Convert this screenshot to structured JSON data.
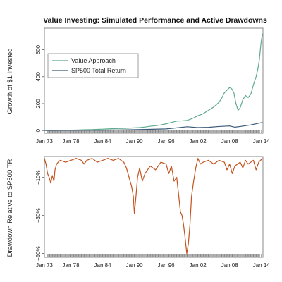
{
  "colors": {
    "value_approach": "#5dab8c",
    "sp500": "#3a5a78",
    "drawdown": "#c4521e",
    "frame": "#888888",
    "tick_band": "#999999"
  },
  "chart_data": [
    {
      "type": "line",
      "title": "Value Investing: Simulated Performance and Active Drawdowns",
      "ylabel": "Growth of $1 Invested",
      "xlabel": "",
      "xlim": [
        1973.0,
        2014.3
      ],
      "ylim": [
        -20,
        760
      ],
      "yticks": [
        0,
        200,
        400,
        600
      ],
      "x_ticks": [
        {
          "label": "Jan 73",
          "x": 1973
        },
        {
          "label": "Jan 78",
          "x": 1978
        },
        {
          "label": "Jan 84",
          "x": 1984
        },
        {
          "label": "Jan 90",
          "x": 1990
        },
        {
          "label": "Jan 96",
          "x": 1996
        },
        {
          "label": "Jan 02",
          "x": 2002
        },
        {
          "label": "Jan 08",
          "x": 2008
        },
        {
          "label": "Jan 14",
          "x": 2014
        }
      ],
      "grid": false,
      "legend_position": "top-left",
      "series": [
        {
          "name": "Value Approach",
          "color_key": "value_approach",
          "x": [
            1973,
            1974,
            1975,
            1976,
            1977,
            1978,
            1979,
            1980,
            1981,
            1982,
            1983,
            1984,
            1985,
            1986,
            1987,
            1988,
            1989,
            1990,
            1991,
            1992,
            1993,
            1994,
            1995,
            1996,
            1997,
            1998,
            1999,
            2000,
            2001,
            2002,
            2003,
            2004,
            2005,
            2006,
            2006.5,
            2007,
            2007.5,
            2008,
            2008.4,
            2008.8,
            2009.2,
            2009.6,
            2010,
            2010.5,
            2011,
            2011.5,
            2012,
            2012.5,
            2013,
            2013.3,
            2013.6,
            2013.9,
            2014.2
          ],
          "values": [
            1,
            1,
            1.5,
            2,
            2.5,
            3,
            4,
            5,
            6,
            7,
            9,
            10,
            12,
            14,
            15,
            16,
            18,
            20,
            22,
            26,
            32,
            36,
            42,
            50,
            60,
            70,
            72,
            75,
            90,
            110,
            125,
            150,
            175,
            210,
            240,
            280,
            300,
            320,
            310,
            280,
            200,
            150,
            170,
            230,
            260,
            245,
            270,
            340,
            400,
            450,
            520,
            640,
            720
          ]
        },
        {
          "name": "SP500 Total Return",
          "color_key": "sp500",
          "x": [
            1973,
            1976,
            1980,
            1984,
            1988,
            1992,
            1996,
            1998,
            2000,
            2002,
            2004,
            2006,
            2008,
            2009,
            2010,
            2012,
            2014.2
          ],
          "values": [
            1,
            1.2,
            2,
            3,
            5,
            8,
            12,
            20,
            28,
            22,
            24,
            30,
            34,
            25,
            30,
            42,
            60
          ]
        }
      ]
    },
    {
      "type": "line",
      "title": "",
      "ylabel": "Drawdown Relative to SP500 TR",
      "xlabel": "",
      "xlim": [
        1973.0,
        2014.3
      ],
      "ylim": [
        -52,
        1
      ],
      "ytick_values": [
        -10,
        -30,
        -50
      ],
      "ytick_labels": [
        "−10%",
        "−30%",
        "−50%"
      ],
      "x_ticks": [
        {
          "label": "Jan 73",
          "x": 1973
        },
        {
          "label": "Jan 78",
          "x": 1978
        },
        {
          "label": "Jan 84",
          "x": 1984
        },
        {
          "label": "Jan 90",
          "x": 1990
        },
        {
          "label": "Jan 96",
          "x": 1996
        },
        {
          "label": "Jan 02",
          "x": 2002
        },
        {
          "label": "Jan 08",
          "x": 2008
        },
        {
          "label": "Jan 14",
          "x": 2014
        }
      ],
      "grid": false,
      "series": [
        {
          "name": "",
          "color_key": "drawdown",
          "x": [
            1973,
            1973.3,
            1973.6,
            1973.9,
            1974.2,
            1974.5,
            1974.8,
            1975.0,
            1975.3,
            1975.6,
            1976,
            1977,
            1978,
            1979,
            1980,
            1980.5,
            1981,
            1982,
            1983,
            1984,
            1985,
            1986,
            1987,
            1988,
            1988.5,
            1989,
            1989.5,
            1989.8,
            1990,
            1990.3,
            1990.6,
            1991,
            1991.5,
            1992,
            1993,
            1994,
            1995,
            1996,
            1996.5,
            1997,
            1997.5,
            1998,
            1998.4,
            1998.7,
            1999,
            1999.3,
            1999.6,
            1999.9,
            2000.2,
            2000.5,
            2000.8,
            2001.2,
            2001.6,
            2002,
            2002.5,
            2003,
            2004,
            2005,
            2006,
            2007,
            2007.5,
            2008,
            2008.5,
            2009,
            2010,
            2010.5,
            2011,
            2011.5,
            2012,
            2012.5,
            2013,
            2013.5,
            2014.2
          ],
          "values": [
            0,
            -3,
            -8,
            -10,
            -13,
            -9,
            -12,
            -6,
            -3,
            -2,
            -1,
            -2,
            -1,
            0,
            -1,
            -3,
            -1,
            0,
            -2,
            -1,
            0,
            -1,
            0,
            -2,
            -5,
            -10,
            -15,
            -20,
            -29,
            -20,
            -10,
            -5,
            -12,
            -8,
            -4,
            -6,
            -2,
            -3,
            -8,
            -4,
            -12,
            -10,
            -20,
            -28,
            -30,
            -35,
            -42,
            -50,
            -45,
            -35,
            -20,
            -12,
            -5,
            0,
            -3,
            -2,
            -1,
            -3,
            -1,
            -2,
            -6,
            -3,
            -8,
            -4,
            -2,
            -5,
            -1,
            -3,
            -2,
            -1,
            -6,
            -2,
            0
          ]
        }
      ]
    }
  ]
}
